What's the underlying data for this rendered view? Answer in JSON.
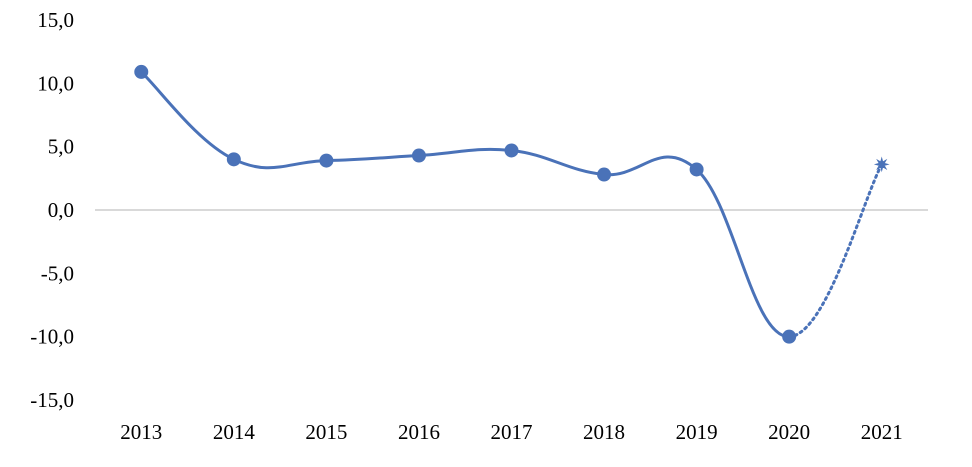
{
  "chart_data": {
    "type": "line",
    "title": "",
    "xlabel": "",
    "ylabel": "",
    "categories": [
      "2013",
      "2014",
      "2015",
      "2016",
      "2017",
      "2018",
      "2019",
      "2020",
      "2021"
    ],
    "yticks": [
      "15,0",
      "10,0",
      "5,0",
      "0,0",
      "-5,0",
      "-10,0",
      "-15,0"
    ],
    "ylim": [
      -15,
      15
    ],
    "grid": false,
    "zero_line": true,
    "legend": "none",
    "series": [
      {
        "values": [
          10.9,
          4.0,
          3.9,
          4.3,
          4.7,
          2.8,
          3.2,
          -10.0,
          3.6
        ],
        "color": "#4a72b8",
        "smooth": true,
        "estimate_from_index": 7,
        "estimate_marker": "star",
        "estimate_style": "dotted"
      }
    ]
  }
}
